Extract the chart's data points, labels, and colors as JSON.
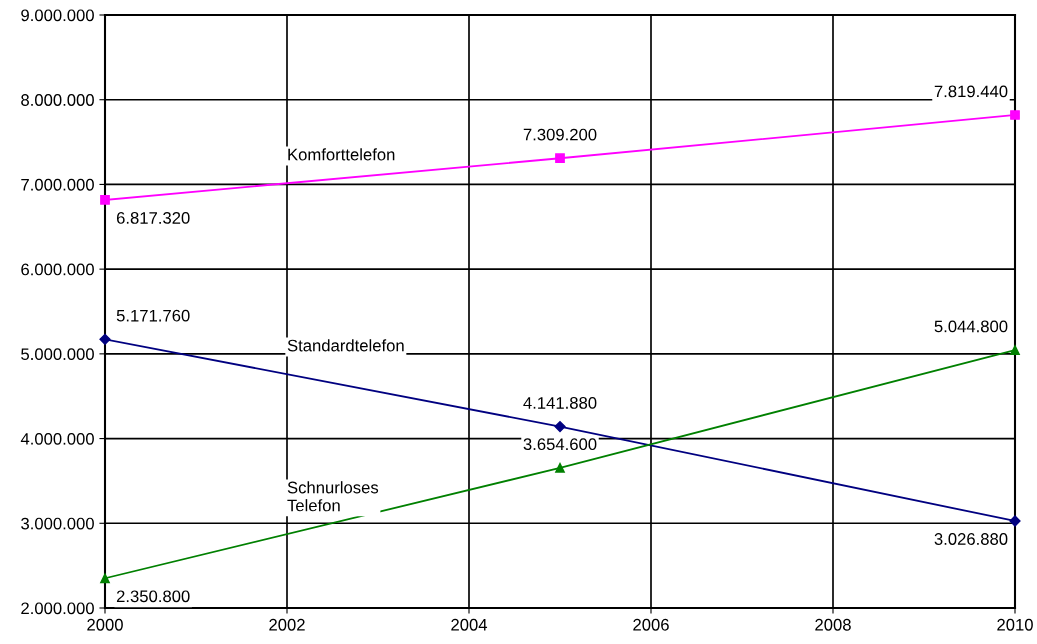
{
  "chart_data": {
    "type": "line",
    "x": [
      2000,
      2005,
      2010
    ],
    "series": [
      {
        "name": "Komforttelefon",
        "color": "#ff00ff",
        "marker": "square",
        "values": [
          6817320,
          7309200,
          7819440
        ],
        "value_labels": [
          "6.817.320",
          "7.309.200",
          "7.819.440"
        ]
      },
      {
        "name": "Standardtelefon",
        "color": "#000080",
        "marker": "diamond",
        "values": [
          5171760,
          4141880,
          3026880
        ],
        "value_labels": [
          "5.171.760",
          "4.141.880",
          "3.026.880"
        ]
      },
      {
        "name": "Schnurloses\nTelefon",
        "color": "#008000",
        "marker": "triangle",
        "values": [
          2350800,
          3654600,
          5044800
        ],
        "value_labels": [
          "2.350.800",
          "3.654.600",
          "5.044.800"
        ]
      }
    ],
    "xlim": [
      2000,
      2010
    ],
    "xticks": [
      2000,
      2002,
      2004,
      2006,
      2008,
      2010
    ],
    "ylim": [
      2000000,
      9000000
    ],
    "yticks": [
      {
        "value": 2000000,
        "label": "2.000.000"
      },
      {
        "value": 3000000,
        "label": "3.000.000"
      },
      {
        "value": 4000000,
        "label": "4.000.000"
      },
      {
        "value": 5000000,
        "label": "5.000.000"
      },
      {
        "value": 6000000,
        "label": "6.000.000"
      },
      {
        "value": 7000000,
        "label": "7.000.000"
      },
      {
        "value": 8000000,
        "label": "8.000.000"
      },
      {
        "value": 9000000,
        "label": "9.000.000"
      }
    ],
    "grid": true,
    "line_style": "solid"
  }
}
